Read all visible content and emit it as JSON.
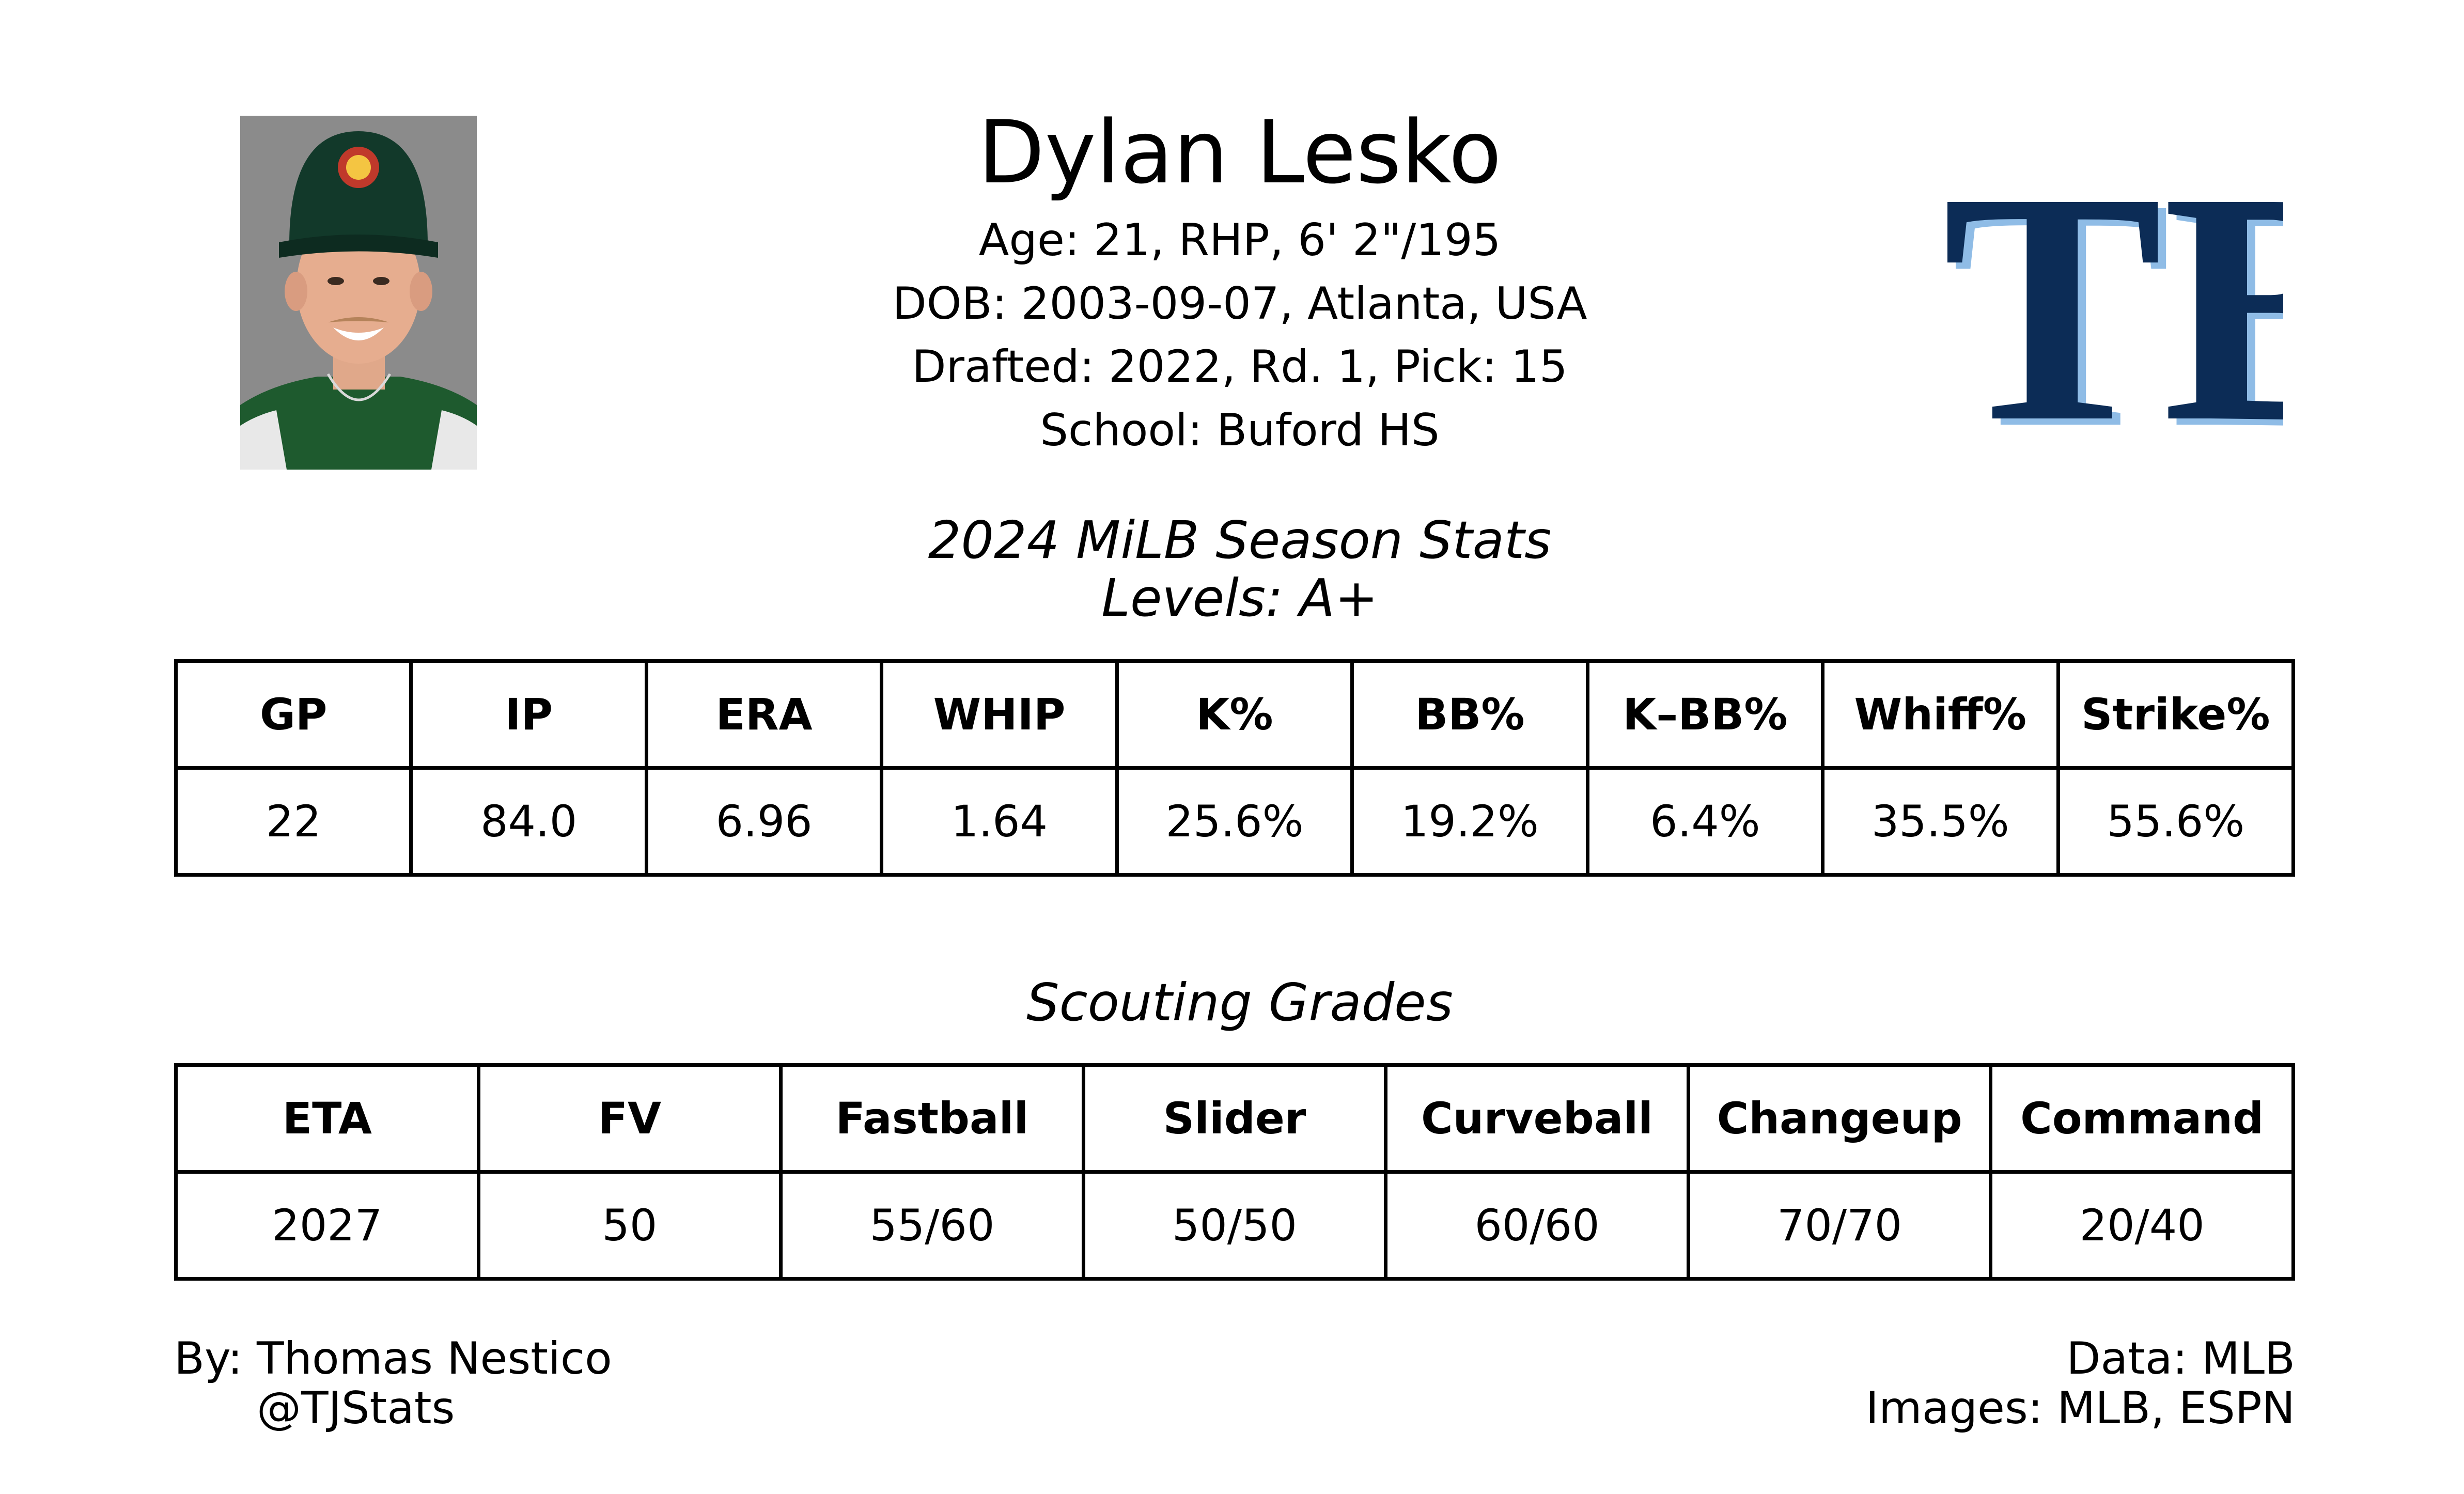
{
  "player": {
    "name": "Dylan Lesko",
    "age_line": "Age: 21, RHP, 6' 2\"/195",
    "dob_line": "DOB: 2003-09-07, Atlanta, USA",
    "drafted_line": "Drafted: 2022, Rd. 1, Pick: 15",
    "school_line": "School: Buford HS"
  },
  "images": {
    "headshot": "player-headshot",
    "team_logo": "tb-logo-icon",
    "team_logo_text": "TB",
    "colors": {
      "logo_primary": "#0c2c56",
      "logo_outline": "#8fbce6"
    }
  },
  "season_stats": {
    "title": "2024 MiLB Season Stats",
    "levels": "Levels: A+",
    "headers": [
      "GP",
      "IP",
      "ERA",
      "WHIP",
      "K%",
      "BB%",
      "K–BB%",
      "Whiff%",
      "Strike%"
    ],
    "values": [
      "22",
      "84.0",
      "6.96",
      "1.64",
      "25.6%",
      "19.2%",
      "6.4%",
      "35.5%",
      "55.6%"
    ]
  },
  "scouting": {
    "title": "Scouting Grades",
    "headers": [
      "ETA",
      "FV",
      "Fastball",
      "Slider",
      "Curveball",
      "Changeup",
      "Command"
    ],
    "values": [
      "2027",
      "50",
      "55/60",
      "50/50",
      "60/60",
      "70/70",
      "20/40"
    ]
  },
  "footer": {
    "by": "By: Thomas Nestico",
    "handle": "@TJStats",
    "data": "Data: MLB",
    "images": "Images: MLB, ESPN"
  }
}
